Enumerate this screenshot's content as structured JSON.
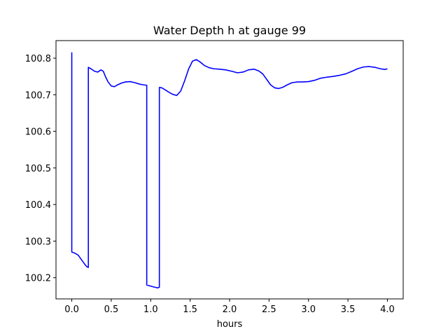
{
  "chart_data": {
    "type": "line",
    "title": "Water Depth h at gauge 99",
    "xlabel": "hours",
    "ylabel": "",
    "xlim": [
      -0.2,
      4.2
    ],
    "ylim": [
      100.142,
      100.848
    ],
    "xticks": [
      0.0,
      0.5,
      1.0,
      1.5,
      2.0,
      2.5,
      3.0,
      3.5,
      4.0
    ],
    "xtick_labels": [
      "0.0",
      "0.5",
      "1.0",
      "1.5",
      "2.0",
      "2.5",
      "3.0",
      "3.5",
      "4.0"
    ],
    "yticks": [
      100.2,
      100.3,
      100.4,
      100.5,
      100.6,
      100.7,
      100.8
    ],
    "ytick_labels": [
      "100.2",
      "100.3",
      "100.4",
      "100.5",
      "100.6",
      "100.7",
      "100.8"
    ],
    "grid": false,
    "series": [
      {
        "color": "#0000ff",
        "x": [
          0.0,
          0.0,
          0.03,
          0.08,
          0.12,
          0.16,
          0.19,
          0.21,
          0.21,
          0.25,
          0.29,
          0.33,
          0.37,
          0.4,
          0.43,
          0.46,
          0.5,
          0.54,
          0.58,
          0.63,
          0.68,
          0.74,
          0.8,
          0.86,
          0.91,
          0.95,
          0.95,
          1.0,
          1.05,
          1.09,
          1.11,
          1.11,
          1.14,
          1.18,
          1.23,
          1.28,
          1.33,
          1.38,
          1.43,
          1.48,
          1.53,
          1.58,
          1.63,
          1.68,
          1.74,
          1.8,
          1.87,
          1.95,
          2.03,
          2.1,
          2.17,
          2.24,
          2.31,
          2.37,
          2.42,
          2.47,
          2.52,
          2.57,
          2.62,
          2.67,
          2.73,
          2.79,
          2.86,
          2.93,
          3.0,
          3.07,
          3.15,
          3.23,
          3.31,
          3.39,
          3.47,
          3.55,
          3.62,
          3.7,
          3.77,
          3.84,
          3.91,
          3.97,
          4.0
        ],
        "y": [
          100.816,
          100.27,
          100.268,
          100.262,
          100.25,
          100.238,
          100.23,
          100.228,
          100.775,
          100.77,
          100.764,
          100.762,
          100.768,
          100.764,
          100.748,
          100.735,
          100.724,
          100.722,
          100.727,
          100.732,
          100.735,
          100.736,
          100.733,
          100.729,
          100.727,
          100.726,
          100.18,
          100.177,
          100.174,
          100.172,
          100.174,
          100.72,
          100.719,
          100.714,
          100.707,
          100.701,
          100.698,
          100.71,
          100.738,
          100.77,
          100.792,
          100.796,
          100.789,
          100.78,
          100.774,
          100.771,
          100.77,
          100.768,
          100.764,
          100.76,
          100.762,
          100.768,
          100.77,
          100.765,
          100.757,
          100.742,
          100.727,
          100.719,
          100.717,
          100.72,
          100.727,
          100.733,
          100.735,
          100.735,
          100.736,
          100.739,
          100.745,
          100.748,
          100.75,
          100.753,
          100.757,
          100.764,
          100.771,
          100.776,
          100.777,
          100.775,
          100.771,
          100.769,
          100.771
        ]
      }
    ]
  }
}
